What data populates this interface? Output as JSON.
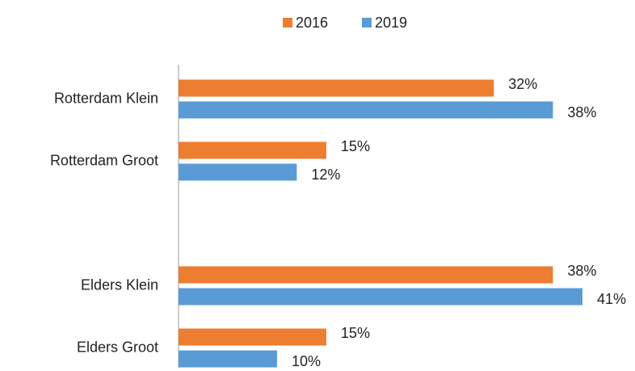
{
  "chart_data": {
    "type": "hbar",
    "categories": [
      "Rotterdam Klein",
      "Rotterdam Groot",
      null,
      "Elders Klein",
      "Elders Groot"
    ],
    "series": [
      {
        "name": "2016",
        "color": "#ed7d31",
        "values": [
          32,
          15,
          null,
          38,
          15
        ],
        "value_labels": [
          "32%",
          "15%",
          null,
          "38%",
          "15%"
        ]
      },
      {
        "name": "2019",
        "color": "#5b9bd5",
        "values": [
          38,
          12,
          null,
          41,
          10
        ],
        "value_labels": [
          "38%",
          "12%",
          null,
          "41%",
          "10%"
        ]
      }
    ],
    "legend": "top"
  }
}
